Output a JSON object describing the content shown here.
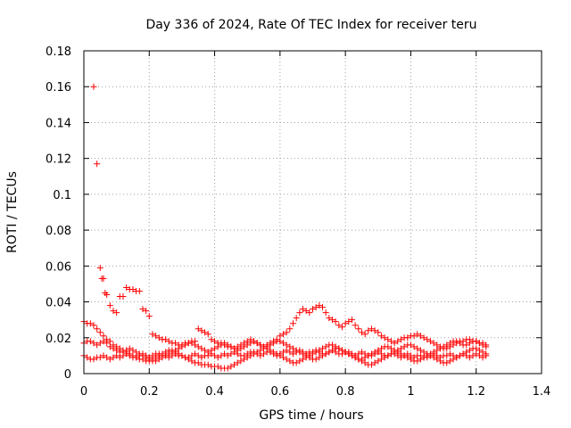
{
  "chart_data": {
    "type": "scatter",
    "title": "Day 336 of 2024, Rate Of TEC Index for receiver teru",
    "xlabel": "GPS time / hours",
    "ylabel": "ROTI / TECUs",
    "xlim": [
      0,
      1.4
    ],
    "ylim": [
      0,
      0.18
    ],
    "xticks": [
      0,
      0.2,
      0.4,
      0.6,
      0.8,
      1,
      1.2,
      1.4
    ],
    "xtick_labels": [
      "0",
      "0.2",
      "0.4",
      "0.6",
      "0.8",
      "1",
      "1.2",
      "1.4"
    ],
    "yticks": [
      0,
      0.02,
      0.04,
      0.06,
      0.08,
      0.1,
      0.12,
      0.14,
      0.16,
      0.18
    ],
    "ytick_labels": [
      "0",
      "0.02",
      "0.04",
      "0.06",
      "0.08",
      "0.1",
      "0.12",
      "0.14",
      "0.16",
      "0.18"
    ],
    "grid": true,
    "marker": "+",
    "color": "#ff0000",
    "series": [
      {
        "x": [
          0.0,
          0.01,
          0.02,
          0.03,
          0.04,
          0.05,
          0.06,
          0.07,
          0.08,
          0.09,
          0.1,
          0.11,
          0.12,
          0.13,
          0.14,
          0.15,
          0.16,
          0.17,
          0.18,
          0.19,
          0.2,
          0.21,
          0.22,
          0.23,
          0.24,
          0.25,
          0.26,
          0.27,
          0.28,
          0.29,
          0.3,
          0.31,
          0.32,
          0.33,
          0.34,
          0.35,
          0.36,
          0.37,
          0.38,
          0.39,
          0.4,
          0.41,
          0.42,
          0.43,
          0.44,
          0.45,
          0.46,
          0.47,
          0.48,
          0.49,
          0.5,
          0.51,
          0.52,
          0.53,
          0.54,
          0.55,
          0.56,
          0.57,
          0.58,
          0.59,
          0.6,
          0.61,
          0.62,
          0.63,
          0.64,
          0.65,
          0.66,
          0.67,
          0.68,
          0.69,
          0.7,
          0.71,
          0.72,
          0.73,
          0.74,
          0.75,
          0.76,
          0.77,
          0.78,
          0.79,
          0.8,
          0.81,
          0.82,
          0.83,
          0.84,
          0.85,
          0.86,
          0.87,
          0.88,
          0.89,
          0.9,
          0.91,
          0.92,
          0.93,
          0.94,
          0.95,
          0.96,
          0.97,
          0.98,
          0.99,
          1.0,
          1.01,
          1.02,
          1.03,
          1.04,
          1.05,
          1.06,
          1.07,
          1.08,
          1.09,
          1.1,
          1.11,
          1.12,
          1.13,
          1.14,
          1.15,
          1.16,
          1.17,
          1.18,
          1.19,
          1.2,
          1.21,
          1.22,
          1.23
        ],
        "y": [
          0.01,
          0.009,
          0.008,
          0.008,
          0.009,
          0.009,
          0.01,
          0.009,
          0.008,
          0.009,
          0.01,
          0.009,
          0.01,
          0.011,
          0.01,
          0.009,
          0.009,
          0.01,
          0.011,
          0.01,
          0.009,
          0.01,
          0.011,
          0.011,
          0.01,
          0.01,
          0.009,
          0.01,
          0.011,
          0.01,
          0.01,
          0.009,
          0.009,
          0.01,
          0.011,
          0.01,
          0.009,
          0.01,
          0.01,
          0.011,
          0.01,
          0.009,
          0.01,
          0.011,
          0.01,
          0.011,
          0.012,
          0.011,
          0.01,
          0.01,
          0.011,
          0.012,
          0.012,
          0.011,
          0.01,
          0.011,
          0.012,
          0.012,
          0.011,
          0.01,
          0.011,
          0.012,
          0.013,
          0.012,
          0.011,
          0.012,
          0.013,
          0.012,
          0.011,
          0.012,
          0.012,
          0.013,
          0.012,
          0.011,
          0.011,
          0.012,
          0.013,
          0.012,
          0.011,
          0.011,
          0.012,
          0.012,
          0.011,
          0.01,
          0.011,
          0.012,
          0.011,
          0.01,
          0.01,
          0.011,
          0.012,
          0.011,
          0.01,
          0.01,
          0.011,
          0.011,
          0.01,
          0.009,
          0.01,
          0.011,
          0.01,
          0.009,
          0.01,
          0.01,
          0.009,
          0.009,
          0.01,
          0.011,
          0.01,
          0.009,
          0.01,
          0.01,
          0.011,
          0.01,
          0.009,
          0.01,
          0.011,
          0.01,
          0.009,
          0.01,
          0.011,
          0.01,
          0.009,
          0.01
        ]
      },
      {
        "x": [
          0.0,
          0.01,
          0.02,
          0.03,
          0.04,
          0.05,
          0.06,
          0.07,
          0.08,
          0.09,
          0.1,
          0.11,
          0.12,
          0.13,
          0.14,
          0.15,
          0.16,
          0.17,
          0.18,
          0.19,
          0.2,
          0.21,
          0.22,
          0.23,
          0.24,
          0.25,
          0.26,
          0.27,
          0.28,
          0.29,
          0.3,
          0.31,
          0.32,
          0.33,
          0.34,
          0.35,
          0.36,
          0.37,
          0.38,
          0.39,
          0.4,
          0.41,
          0.42,
          0.43,
          0.44,
          0.45,
          0.46,
          0.47,
          0.48,
          0.49,
          0.5,
          0.51,
          0.52,
          0.53,
          0.54,
          0.55,
          0.56,
          0.57,
          0.58,
          0.59,
          0.6,
          0.61,
          0.62,
          0.63,
          0.64,
          0.65,
          0.66,
          0.67,
          0.68,
          0.69,
          0.7,
          0.71,
          0.72,
          0.73,
          0.74,
          0.75,
          0.76,
          0.77,
          0.78,
          0.79,
          0.8,
          0.81,
          0.82,
          0.83,
          0.84,
          0.85,
          0.86,
          0.87,
          0.88,
          0.89,
          0.9,
          0.91,
          0.92,
          0.93,
          0.94,
          0.95,
          0.96,
          0.97,
          0.98,
          0.99,
          1.0,
          1.01,
          1.02,
          1.03,
          1.04,
          1.05,
          1.06,
          1.07,
          1.08,
          1.09,
          1.1,
          1.11,
          1.12,
          1.13,
          1.14,
          1.15,
          1.16,
          1.17,
          1.18,
          1.19,
          1.2,
          1.21,
          1.22,
          1.23
        ],
        "y": [
          0.017,
          0.018,
          0.018,
          0.017,
          0.016,
          0.017,
          0.018,
          0.017,
          0.015,
          0.014,
          0.013,
          0.012,
          0.012,
          0.013,
          0.014,
          0.013,
          0.012,
          0.011,
          0.01,
          0.009,
          0.008,
          0.007,
          0.007,
          0.008,
          0.009,
          0.01,
          0.011,
          0.012,
          0.013,
          0.014,
          0.015,
          0.016,
          0.017,
          0.017,
          0.016,
          0.015,
          0.014,
          0.013,
          0.012,
          0.013,
          0.014,
          0.015,
          0.016,
          0.017,
          0.016,
          0.015,
          0.014,
          0.013,
          0.014,
          0.015,
          0.016,
          0.017,
          0.018,
          0.017,
          0.016,
          0.015,
          0.014,
          0.013,
          0.012,
          0.011,
          0.01,
          0.009,
          0.008,
          0.007,
          0.006,
          0.006,
          0.007,
          0.008,
          0.009,
          0.01,
          0.011,
          0.012,
          0.013,
          0.014,
          0.015,
          0.016,
          0.016,
          0.015,
          0.014,
          0.013,
          0.012,
          0.011,
          0.01,
          0.009,
          0.008,
          0.008,
          0.009,
          0.01,
          0.011,
          0.012,
          0.013,
          0.014,
          0.015,
          0.015,
          0.014,
          0.013,
          0.012,
          0.011,
          0.01,
          0.009,
          0.008,
          0.007,
          0.007,
          0.008,
          0.009,
          0.01,
          0.011,
          0.012,
          0.013,
          0.014,
          0.015,
          0.016,
          0.017,
          0.018,
          0.018,
          0.017,
          0.016,
          0.016,
          0.017,
          0.018,
          0.018,
          0.017,
          0.016,
          0.015
        ]
      },
      {
        "x": [
          0.0,
          0.01,
          0.02,
          0.03,
          0.04,
          0.05,
          0.06,
          0.07,
          0.08,
          0.09,
          0.1,
          0.11,
          0.12,
          0.13,
          0.14,
          0.15,
          0.16,
          0.17,
          0.18,
          0.19,
          0.2,
          0.21,
          0.22,
          0.23,
          0.24,
          0.25,
          0.26,
          0.27,
          0.28,
          0.29,
          0.3,
          0.31,
          0.32,
          0.33,
          0.34,
          0.35,
          0.36,
          0.37,
          0.38,
          0.39,
          0.4,
          0.41,
          0.42,
          0.43,
          0.44,
          0.45,
          0.46,
          0.47,
          0.48,
          0.49,
          0.5,
          0.51,
          0.52,
          0.53,
          0.54,
          0.55,
          0.56,
          0.57,
          0.58,
          0.59,
          0.6,
          0.61,
          0.62,
          0.63,
          0.64,
          0.65,
          0.66,
          0.67,
          0.68,
          0.69,
          0.7,
          0.71,
          0.72,
          0.73,
          0.74,
          0.75,
          0.76,
          0.77,
          0.78,
          0.79,
          0.8,
          0.81,
          0.82,
          0.83,
          0.84,
          0.85,
          0.86,
          0.87,
          0.88,
          0.89,
          0.9,
          0.91,
          0.92,
          0.93,
          0.94,
          0.95,
          0.96,
          0.97,
          0.98,
          0.99,
          1.0,
          1.01,
          1.02,
          1.03,
          1.04,
          1.05,
          1.06,
          1.07,
          1.08,
          1.09,
          1.1,
          1.11,
          1.12,
          1.13,
          1.14,
          1.15,
          1.16,
          1.17,
          1.18,
          1.19,
          1.2,
          1.21,
          1.22,
          1.23
        ],
        "y": [
          0.029,
          0.028,
          0.028,
          0.027,
          0.025,
          0.023,
          0.021,
          0.019,
          0.018,
          0.016,
          0.015,
          0.014,
          0.013,
          0.012,
          0.011,
          0.01,
          0.009,
          0.008,
          0.008,
          0.007,
          0.007,
          0.008,
          0.009,
          0.01,
          0.011,
          0.012,
          0.013,
          0.013,
          0.012,
          0.011,
          0.01,
          0.009,
          0.008,
          0.007,
          0.006,
          0.006,
          0.005,
          0.005,
          0.005,
          0.004,
          0.004,
          0.004,
          0.003,
          0.003,
          0.003,
          0.004,
          0.005,
          0.006,
          0.007,
          0.008,
          0.009,
          0.01,
          0.011,
          0.012,
          0.013,
          0.014,
          0.015,
          0.016,
          0.017,
          0.018,
          0.018,
          0.017,
          0.016,
          0.015,
          0.014,
          0.013,
          0.012,
          0.011,
          0.01,
          0.009,
          0.008,
          0.008,
          0.009,
          0.01,
          0.011,
          0.012,
          0.013,
          0.014,
          0.014,
          0.013,
          0.012,
          0.011,
          0.01,
          0.009,
          0.008,
          0.007,
          0.006,
          0.005,
          0.005,
          0.006,
          0.007,
          0.008,
          0.009,
          0.01,
          0.011,
          0.012,
          0.013,
          0.014,
          0.015,
          0.016,
          0.016,
          0.015,
          0.014,
          0.013,
          0.012,
          0.011,
          0.01,
          0.009,
          0.008,
          0.007,
          0.006,
          0.006,
          0.007,
          0.008,
          0.009,
          0.01,
          0.011,
          0.012,
          0.013,
          0.014,
          0.014,
          0.013,
          0.012,
          0.011
        ]
      },
      {
        "x": [
          0.03,
          0.04,
          0.05,
          0.055,
          0.06,
          0.065,
          0.07,
          0.08,
          0.09,
          0.1,
          0.11,
          0.12,
          0.13,
          0.14,
          0.15,
          0.16,
          0.17,
          0.18,
          0.19,
          0.2,
          0.21,
          0.22,
          0.23,
          0.24,
          0.25,
          0.26,
          0.27,
          0.28,
          0.29,
          0.3,
          0.31,
          0.32,
          0.33,
          0.34,
          0.35,
          0.36,
          0.37,
          0.38,
          0.39,
          0.4,
          0.41,
          0.42,
          0.43,
          0.44,
          0.45,
          0.46,
          0.47,
          0.48,
          0.49,
          0.5,
          0.51,
          0.52,
          0.53,
          0.54,
          0.55,
          0.56,
          0.57,
          0.58,
          0.59,
          0.6,
          0.61,
          0.62,
          0.63,
          0.64,
          0.65,
          0.66,
          0.67,
          0.68,
          0.69,
          0.7,
          0.71,
          0.72,
          0.73,
          0.74,
          0.75,
          0.76,
          0.77,
          0.78,
          0.79,
          0.8,
          0.81,
          0.82,
          0.83,
          0.84,
          0.85,
          0.86,
          0.87,
          0.88,
          0.89,
          0.9,
          0.91,
          0.92,
          0.93,
          0.94,
          0.95,
          0.96,
          0.97,
          0.98,
          0.99,
          1.0,
          1.01,
          1.02,
          1.03,
          1.04,
          1.05,
          1.06,
          1.07,
          1.08,
          1.09,
          1.1,
          1.11,
          1.12,
          1.13,
          1.14,
          1.15,
          1.16,
          1.17,
          1.18,
          1.19,
          1.2,
          1.21,
          1.22,
          1.23
        ],
        "y": [
          0.16,
          0.117,
          0.059,
          0.053,
          0.053,
          0.045,
          0.044,
          0.038,
          0.035,
          0.034,
          0.043,
          0.043,
          0.048,
          0.047,
          0.047,
          0.046,
          0.046,
          0.036,
          0.035,
          0.032,
          0.022,
          0.021,
          0.02,
          0.019,
          0.019,
          0.018,
          0.017,
          0.017,
          0.016,
          0.016,
          0.017,
          0.017,
          0.018,
          0.018,
          0.025,
          0.024,
          0.023,
          0.022,
          0.019,
          0.018,
          0.017,
          0.017,
          0.016,
          0.015,
          0.015,
          0.014,
          0.015,
          0.016,
          0.017,
          0.018,
          0.019,
          0.018,
          0.017,
          0.016,
          0.015,
          0.016,
          0.017,
          0.018,
          0.019,
          0.021,
          0.022,
          0.023,
          0.025,
          0.028,
          0.031,
          0.034,
          0.036,
          0.035,
          0.034,
          0.036,
          0.037,
          0.038,
          0.037,
          0.034,
          0.031,
          0.03,
          0.029,
          0.027,
          0.026,
          0.028,
          0.029,
          0.03,
          0.027,
          0.025,
          0.023,
          0.022,
          0.024,
          0.025,
          0.024,
          0.023,
          0.021,
          0.02,
          0.019,
          0.018,
          0.017,
          0.018,
          0.019,
          0.02,
          0.02,
          0.021,
          0.021,
          0.022,
          0.021,
          0.02,
          0.019,
          0.018,
          0.017,
          0.016,
          0.015,
          0.014,
          0.014,
          0.015,
          0.016,
          0.017,
          0.018,
          0.018,
          0.019,
          0.019,
          0.018,
          0.018,
          0.017,
          0.017,
          0.016
        ]
      }
    ]
  }
}
